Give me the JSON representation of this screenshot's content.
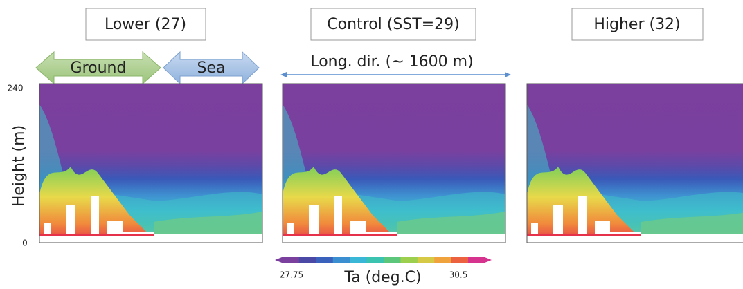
{
  "panels": [
    {
      "title": "Lower (27)"
    },
    {
      "title": "Control (SST=29)"
    },
    {
      "title": "Higher (32)"
    }
  ],
  "regions": {
    "ground": "Ground",
    "sea": "Sea",
    "direction": "Long. dir. (~ 1600 m)"
  },
  "y_axis": {
    "label": "Height (m)",
    "top": "240",
    "bottom": "0"
  },
  "colorbar": {
    "label": "Ta (deg.C)",
    "min": "27.75",
    "max": "30.5"
  }
}
